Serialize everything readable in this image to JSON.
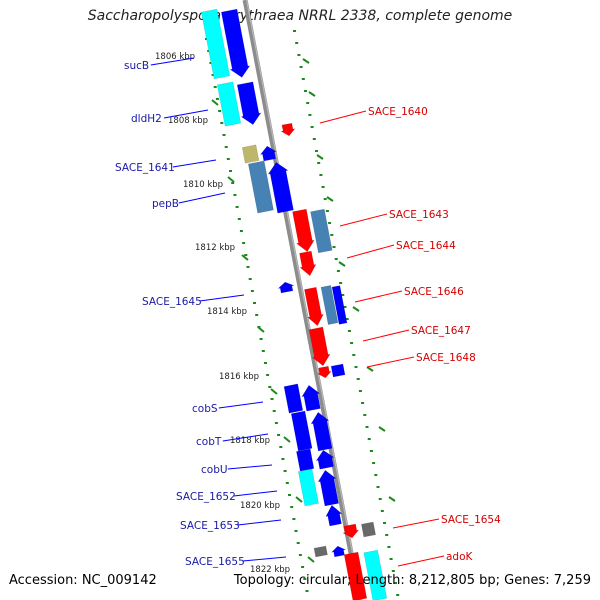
{
  "title": "Saccharopolyspora erythraea NRRL 2338, complete genome",
  "footer": {
    "accession": "Accession: NC_009142",
    "summary": "Topology: circular; Length: 8,212,805 bp; Genes: 7,259"
  },
  "colors": {
    "forward": "#0000ff",
    "reverse": "#ff0000",
    "rna": "#00ffff",
    "steel": "#4682b4",
    "gray": "#696969",
    "khaki": "#bdb76b",
    "backbone": "#8c8c8c",
    "tick": "#1a8a1a",
    "label_left": "#1a1aa6",
    "label_right": "#d40000"
  },
  "scale_labels": [
    "1806 kbp",
    "1808 kbp",
    "1810 kbp",
    "1812 kbp",
    "1814 kbp",
    "1816 kbp",
    "1818 kbp",
    "1820 kbp",
    "1822 kbp"
  ],
  "left_labels": [
    "sucB",
    "dldH2",
    "SACE_1641",
    "pepB",
    "SACE_1645",
    "cobS",
    "cobT",
    "cobU",
    "SACE_1652",
    "SACE_1653",
    "SACE_1655"
  ],
  "right_labels": [
    "SACE_1640",
    "SACE_1643",
    "SACE_1644",
    "SACE_1646",
    "SACE_1647",
    "SACE_1648",
    "SACE_1654",
    "adoK"
  ]
}
